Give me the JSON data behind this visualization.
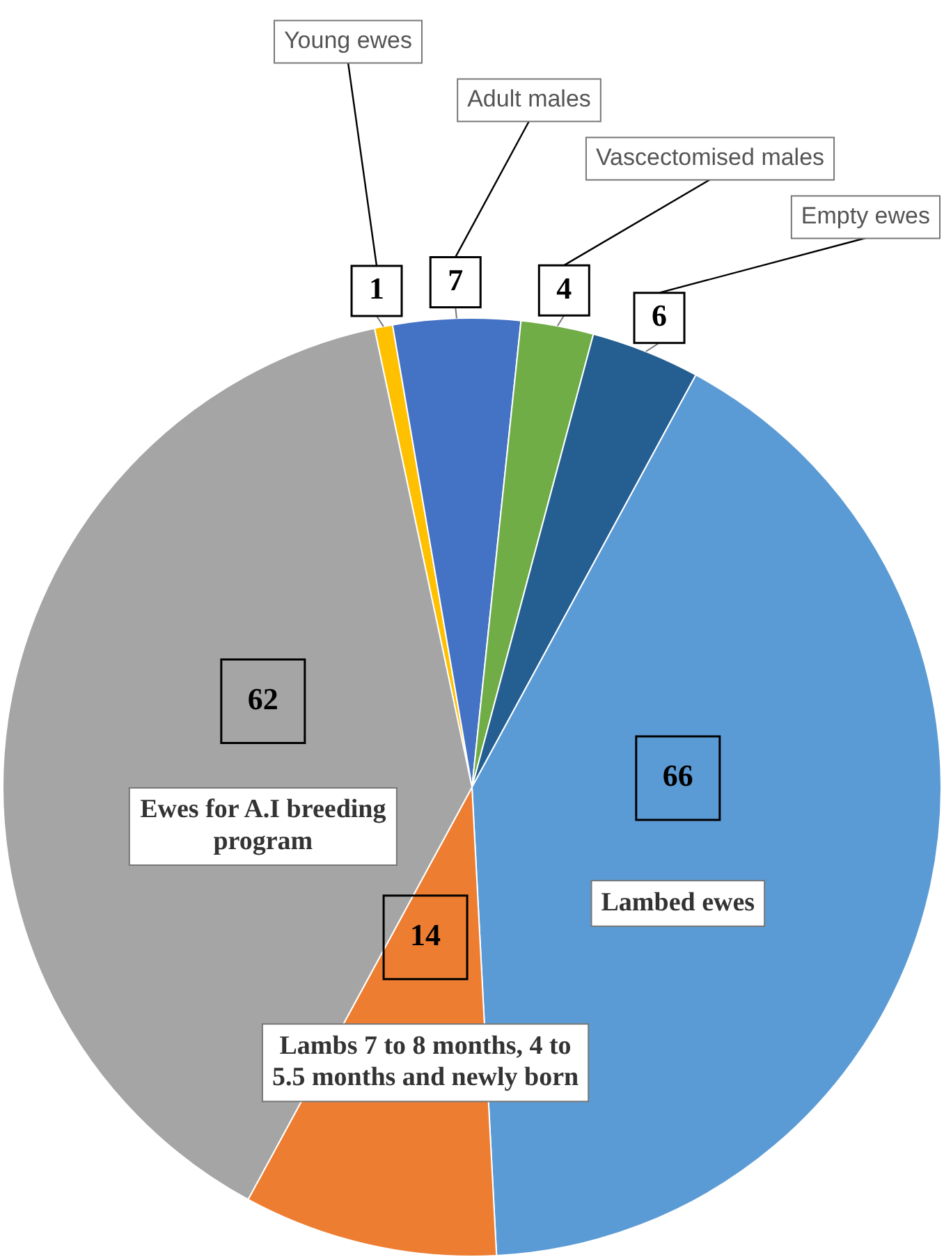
{
  "chart_data": {
    "type": "pie",
    "categories": [
      "Young ewes",
      "Adult males",
      "Vascectomised males",
      "Empty ewes",
      "Lambed ewes",
      "Lambs 7 to 8 months, 4 to 5.5 months and newly born",
      "Ewes for A.I breeding program"
    ],
    "values": [
      1,
      7,
      4,
      6,
      66,
      14,
      62
    ],
    "colors": [
      "#ffc000",
      "#4472c4",
      "#70ad47",
      "#255e91",
      "#5b9bd5",
      "#ed7d31",
      "#a5a5a5"
    ],
    "data_labels": true,
    "legend": false
  }
}
